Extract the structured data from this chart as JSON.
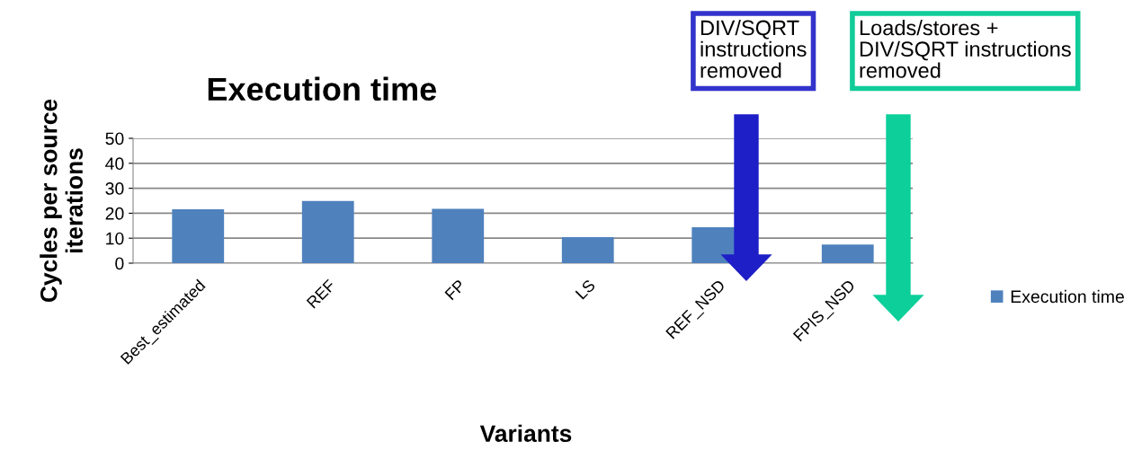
{
  "chart_data": {
    "type": "bar",
    "title": "Execution time",
    "xlabel": "Variants",
    "ylabel": "Cycles per source\niterations",
    "categories": [
      "Best_estimated",
      "REF",
      "FP",
      "LS",
      "REF_NSD",
      "FPIS_NSD"
    ],
    "series": [
      {
        "name": "Execution time",
        "color": "#4f81bd",
        "values": [
          21.6,
          24.9,
          21.8,
          10.4,
          14.4,
          7.5
        ]
      }
    ],
    "ylim": [
      0,
      50
    ],
    "yticks": [
      0,
      10,
      20,
      30,
      40,
      50
    ],
    "grid": "y",
    "legend": "right",
    "annotations": [
      "DIV/SQRT\ninstructions\nremoved",
      "Loads/stores +\nDIV/SQRT instructions\nremoved"
    ]
  }
}
